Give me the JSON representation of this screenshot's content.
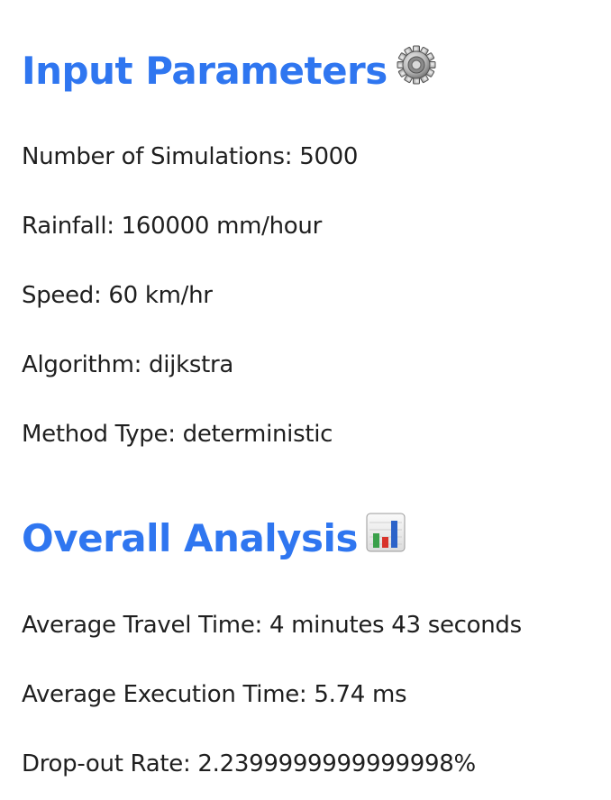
{
  "input_section": {
    "title": "Input Parameters",
    "icon": "gear-icon",
    "rows": [
      {
        "label": "Number of Simulations",
        "value": "5000",
        "text": "Number of Simulations: 5000"
      },
      {
        "label": "Rainfall",
        "value": "160000 mm/hour",
        "text": "Rainfall: 160000 mm/hour"
      },
      {
        "label": "Speed",
        "value": "60 km/hr",
        "text": "Speed: 60 km/hr"
      },
      {
        "label": "Algorithm",
        "value": "dijkstra",
        "text": "Algorithm: dijkstra"
      },
      {
        "label": "Method Type",
        "value": "deterministic",
        "text": "Method Type: deterministic"
      }
    ]
  },
  "analysis_section": {
    "title": "Overall Analysis",
    "icon": "bar-chart-icon",
    "rows": [
      {
        "label": "Average Travel Time",
        "value": "4 minutes 43 seconds",
        "text": "Average Travel Time: 4 minutes 43 seconds"
      },
      {
        "label": "Average Execution Time",
        "value": "5.74 ms",
        "text": "Average Execution Time: 5.74 ms"
      },
      {
        "label": "Drop-out Rate",
        "value": "2.2399999999999998%",
        "text": "Drop-out Rate: 2.2399999999999998%"
      }
    ]
  },
  "colors": {
    "heading": "#2f76f0",
    "text": "#1f1f1f",
    "background": "#ffffff"
  }
}
